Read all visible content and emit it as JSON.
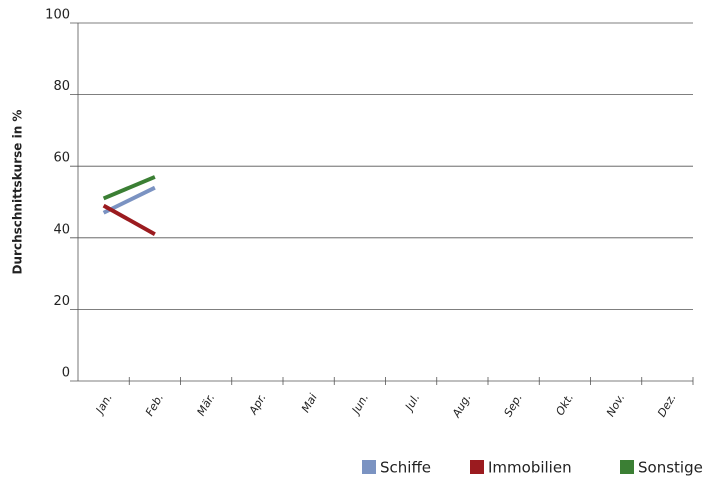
{
  "chart_data": {
    "type": "line",
    "y_label": "Durchschnittskurse in %",
    "categories": [
      "Jan.",
      "Feb.",
      "Mär.",
      "Apr.",
      "Mai",
      "Jun.",
      "Jul.",
      "Aug.",
      "Sep.",
      "Okt.",
      "Nov.",
      "Dez."
    ],
    "series": [
      {
        "name": "Schiffe",
        "color": "#7b93c2",
        "values": [
          47,
          54,
          null,
          null,
          null,
          null,
          null,
          null,
          null,
          null,
          null,
          null
        ]
      },
      {
        "name": "Immobilien",
        "color": "#9b1b1f",
        "values": [
          49,
          41,
          null,
          null,
          null,
          null,
          null,
          null,
          null,
          null,
          null,
          null
        ]
      },
      {
        "name": "Sonstige",
        "color": "#3b7f34",
        "values": [
          51,
          57,
          null,
          null,
          null,
          null,
          null,
          null,
          null,
          null,
          null,
          null
        ]
      }
    ],
    "ylim": [
      0,
      100
    ],
    "yticks": [
      0,
      20,
      40,
      60,
      80,
      100
    ],
    "grid": true,
    "legend": "bottom-right"
  }
}
